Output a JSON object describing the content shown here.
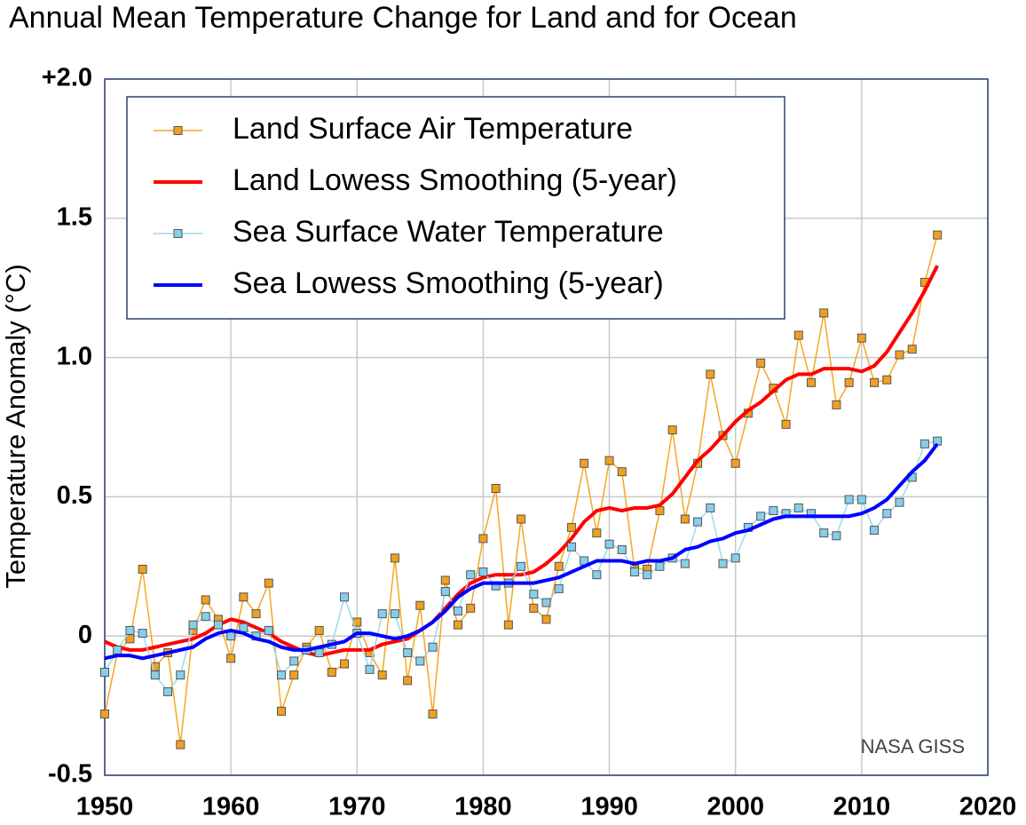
{
  "chart_data": {
    "type": "line",
    "title": "Annual Mean Temperature Change for Land and for Ocean",
    "y_label": "Temperature Anomaly (°C)",
    "annotation": "NASA GISS",
    "x": [
      1950,
      1951,
      1952,
      1953,
      1954,
      1955,
      1956,
      1957,
      1958,
      1959,
      1960,
      1961,
      1962,
      1963,
      1964,
      1965,
      1966,
      1967,
      1968,
      1969,
      1970,
      1971,
      1972,
      1973,
      1974,
      1975,
      1976,
      1977,
      1978,
      1979,
      1980,
      1981,
      1982,
      1983,
      1984,
      1985,
      1986,
      1987,
      1988,
      1989,
      1990,
      1991,
      1992,
      1993,
      1994,
      1995,
      1996,
      1997,
      1998,
      1999,
      2000,
      2001,
      2002,
      2003,
      2004,
      2005,
      2006,
      2007,
      2008,
      2009,
      2010,
      2011,
      2012,
      2013,
      2014,
      2015,
      2016
    ],
    "series": [
      {
        "name": "Land Surface Air Temperature",
        "color": "#f5a623",
        "marker": "square",
        "marker_color": "#f0a020",
        "values": [
          -0.28,
          -0.06,
          -0.01,
          0.24,
          -0.11,
          -0.06,
          -0.39,
          0.02,
          0.13,
          0.06,
          -0.08,
          0.14,
          0.08,
          0.19,
          -0.27,
          -0.14,
          -0.04,
          0.02,
          -0.13,
          -0.1,
          0.05,
          -0.06,
          -0.14,
          0.28,
          -0.16,
          0.11,
          -0.28,
          0.2,
          0.04,
          0.1,
          0.35,
          0.53,
          0.04,
          0.42,
          0.1,
          0.06,
          0.25,
          0.39,
          0.62,
          0.37,
          0.63,
          0.59,
          0.24,
          0.24,
          0.45,
          0.74,
          0.42,
          0.62,
          0.94,
          0.72,
          0.62,
          0.8,
          0.98,
          0.89,
          0.76,
          1.08,
          0.91,
          1.16,
          0.83,
          0.91,
          1.07,
          0.91,
          0.92,
          1.01,
          1.03,
          1.27,
          1.44
        ]
      },
      {
        "name": "Land Lowess Smoothing (5-year)",
        "color": "#ff0000",
        "width": 4,
        "values": [
          -0.02,
          -0.04,
          -0.05,
          -0.05,
          -0.04,
          -0.03,
          -0.02,
          -0.01,
          0.01,
          0.04,
          0.06,
          0.05,
          0.03,
          0.01,
          -0.02,
          -0.04,
          -0.06,
          -0.07,
          -0.06,
          -0.05,
          -0.05,
          -0.05,
          -0.03,
          -0.02,
          -0.01,
          0.02,
          0.05,
          0.1,
          0.15,
          0.19,
          0.21,
          0.22,
          0.22,
          0.22,
          0.23,
          0.26,
          0.3,
          0.35,
          0.41,
          0.45,
          0.46,
          0.45,
          0.46,
          0.46,
          0.47,
          0.51,
          0.57,
          0.63,
          0.67,
          0.72,
          0.77,
          0.81,
          0.84,
          0.88,
          0.92,
          0.94,
          0.94,
          0.96,
          0.96,
          0.96,
          0.95,
          0.97,
          1.02,
          1.09,
          1.16,
          1.24,
          1.33
        ]
      },
      {
        "name": "Sea Surface Water Temperature",
        "color": "#9dd9ee",
        "marker": "square",
        "marker_color": "#87ceeb",
        "values": [
          -0.13,
          -0.05,
          0.02,
          0.01,
          -0.14,
          -0.2,
          -0.14,
          0.04,
          0.07,
          0.04,
          0.0,
          0.03,
          0.0,
          0.02,
          -0.14,
          -0.09,
          -0.05,
          -0.06,
          -0.03,
          0.14,
          0.01,
          -0.12,
          0.08,
          0.08,
          -0.06,
          -0.09,
          -0.04,
          0.16,
          0.09,
          0.22,
          0.23,
          0.18,
          0.19,
          0.25,
          0.15,
          0.12,
          0.17,
          0.32,
          0.27,
          0.22,
          0.33,
          0.31,
          0.23,
          0.22,
          0.25,
          0.28,
          0.26,
          0.41,
          0.46,
          0.26,
          0.28,
          0.39,
          0.43,
          0.45,
          0.44,
          0.46,
          0.44,
          0.37,
          0.36,
          0.49,
          0.49,
          0.38,
          0.44,
          0.48,
          0.57,
          0.69,
          0.7
        ]
      },
      {
        "name": "Sea Lowess Smoothing (5-year)",
        "color": "#0000ff",
        "width": 4,
        "values": [
          -0.08,
          -0.07,
          -0.07,
          -0.08,
          -0.07,
          -0.06,
          -0.05,
          -0.04,
          -0.01,
          0.01,
          0.02,
          0.01,
          -0.01,
          -0.02,
          -0.04,
          -0.05,
          -0.05,
          -0.04,
          -0.03,
          -0.02,
          0.01,
          0.01,
          0.0,
          -0.01,
          0.0,
          0.02,
          0.05,
          0.09,
          0.14,
          0.17,
          0.19,
          0.19,
          0.19,
          0.19,
          0.19,
          0.2,
          0.21,
          0.23,
          0.25,
          0.27,
          0.27,
          0.27,
          0.26,
          0.27,
          0.27,
          0.28,
          0.31,
          0.32,
          0.34,
          0.35,
          0.37,
          0.38,
          0.4,
          0.42,
          0.43,
          0.43,
          0.43,
          0.43,
          0.43,
          0.43,
          0.44,
          0.46,
          0.49,
          0.54,
          0.59,
          0.63,
          0.69
        ]
      }
    ],
    "xlim": [
      1950,
      2020
    ],
    "xticks": [
      1950,
      1960,
      1970,
      1980,
      1990,
      2000,
      2010,
      2020
    ],
    "ylim": [
      -0.5,
      2
    ],
    "yticks": [
      -0.5,
      0,
      0.5,
      {
        "value": 1,
        "label": "1.0"
      },
      1.5,
      {
        "value": 2,
        "label": "+2.0"
      }
    ],
    "grid": true,
    "legend": "upper left"
  }
}
